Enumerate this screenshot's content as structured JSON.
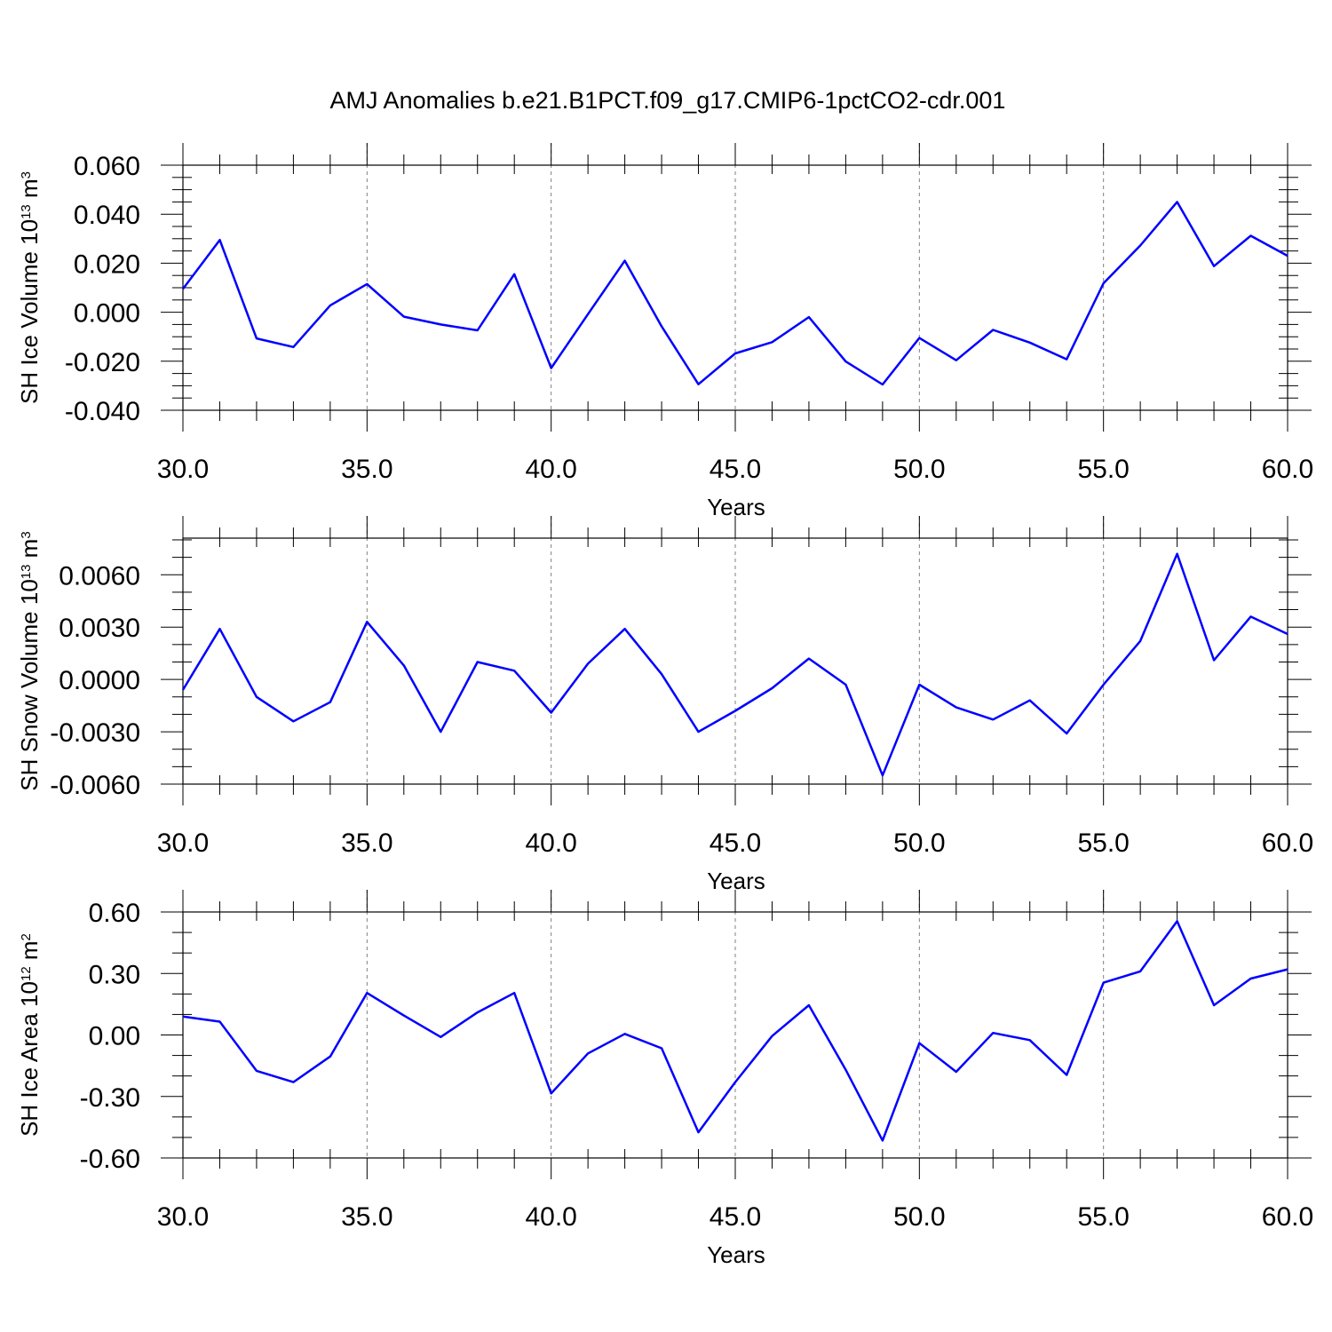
{
  "title": "AMJ Anomalies b.e21.B1PCT.f09_g17.CMIP6-1pctCO2-cdr.001",
  "colors": {
    "series": "#0000ff",
    "axes": "#000000",
    "grid": "#7f7f7f"
  },
  "chart_data": [
    {
      "type": "line",
      "xlabel": "Years",
      "ylabel": {
        "text": "SH Ice Volume 10",
        "exp": "13",
        "unit": " m",
        "unit_exp": "3"
      },
      "xlim": [
        30,
        60
      ],
      "ylim": [
        -0.04,
        0.06
      ],
      "xticks": [
        30,
        35,
        40,
        45,
        50,
        55,
        60
      ],
      "xtick_labels": [
        "30.0",
        "35.0",
        "40.0",
        "45.0",
        "50.0",
        "55.0",
        "60.0"
      ],
      "yticks": [
        -0.04,
        -0.02,
        0,
        0.02,
        0.04,
        0.06
      ],
      "ytick_labels": [
        "-0.040",
        "-0.020",
        "0.000",
        "0.020",
        "0.040",
        "0.060"
      ],
      "ymajor_step": 0.02,
      "yminor_step": 0.005,
      "grid": "vertical dashed at major x ticks",
      "series": [
        {
          "x": [
            30,
            31,
            32,
            33,
            34,
            35,
            36,
            37,
            38,
            39,
            40,
            41,
            42,
            43,
            44,
            45,
            46,
            47,
            48,
            49,
            50,
            51,
            52,
            53,
            54,
            55,
            56,
            57,
            58,
            59,
            60
          ],
          "values": [
            0.0095,
            0.0295,
            -0.0107,
            -0.0142,
            0.0028,
            0.0115,
            -0.0018,
            -0.005,
            -0.0074,
            0.0155,
            -0.0228,
            -0.0008,
            0.021,
            -0.0058,
            -0.0294,
            -0.0168,
            -0.0122,
            -0.002,
            -0.0201,
            -0.0295,
            -0.0105,
            -0.0196,
            -0.0072,
            -0.0124,
            -0.0192,
            0.0118,
            0.0272,
            0.045,
            0.0188,
            0.0312,
            0.023
          ]
        }
      ]
    },
    {
      "type": "line",
      "xlabel": "Years",
      "ylabel": {
        "text": "SH Snow Volume 10",
        "exp": "13",
        "unit": " m",
        "unit_exp": "3"
      },
      "xlim": [
        30,
        60
      ],
      "ylim": [
        -0.006,
        0.0081
      ],
      "xticks": [
        30,
        35,
        40,
        45,
        50,
        55,
        60
      ],
      "xtick_labels": [
        "30.0",
        "35.0",
        "40.0",
        "45.0",
        "50.0",
        "55.0",
        "60.0"
      ],
      "yticks": [
        -0.006,
        -0.003,
        0,
        0.003,
        0.006
      ],
      "ytick_labels": [
        "-0.0060",
        "-0.0030",
        "0.0000",
        "0.0030",
        "0.0060"
      ],
      "ymajor_step": 0.003,
      "yminor_step": 0.001,
      "grid": "vertical dashed at major x ticks",
      "series": [
        {
          "x": [
            30,
            31,
            32,
            33,
            34,
            35,
            36,
            37,
            38,
            39,
            40,
            41,
            42,
            43,
            44,
            45,
            46,
            47,
            48,
            49,
            50,
            51,
            52,
            53,
            54,
            55,
            56,
            57,
            58,
            59,
            60
          ],
          "values": [
            -0.0006,
            0.0029,
            -0.001,
            -0.0024,
            -0.0013,
            0.0033,
            0.0008,
            -0.003,
            0.001,
            0.0005,
            -0.0019,
            0.0009,
            0.0029,
            0.0003,
            -0.003,
            -0.0018,
            -0.0005,
            0.0012,
            -0.0003,
            -0.0055,
            -0.0003,
            -0.0016,
            -0.0023,
            -0.0012,
            -0.0031,
            -0.0003,
            0.0022,
            0.0072,
            0.0011,
            0.0036,
            0.0026
          ]
        }
      ]
    },
    {
      "type": "line",
      "xlabel": "Years",
      "ylabel": {
        "text": "SH Ice Area 10",
        "exp": "12",
        "unit": " m",
        "unit_exp": "2"
      },
      "xlim": [
        30,
        60
      ],
      "ylim": [
        -0.6,
        0.6
      ],
      "xticks": [
        30,
        35,
        40,
        45,
        50,
        55,
        60
      ],
      "xtick_labels": [
        "30.0",
        "35.0",
        "40.0",
        "45.0",
        "50.0",
        "55.0",
        "60.0"
      ],
      "yticks": [
        -0.6,
        -0.3,
        0,
        0.3,
        0.6
      ],
      "ytick_labels": [
        "-0.60",
        "-0.30",
        "0.00",
        "0.30",
        "0.60"
      ],
      "ymajor_step": 0.3,
      "yminor_step": 0.1,
      "grid": "vertical dashed at major x ticks",
      "series": [
        {
          "x": [
            30,
            31,
            32,
            33,
            34,
            35,
            36,
            37,
            38,
            39,
            40,
            41,
            42,
            43,
            44,
            45,
            46,
            47,
            48,
            49,
            50,
            51,
            52,
            53,
            54,
            55,
            56,
            57,
            58,
            59,
            60
          ],
          "values": [
            0.09,
            0.065,
            -0.175,
            -0.23,
            -0.105,
            0.205,
            0.095,
            -0.01,
            0.11,
            0.205,
            -0.285,
            -0.09,
            0.005,
            -0.065,
            -0.475,
            -0.23,
            -0.005,
            0.145,
            -0.17,
            -0.515,
            -0.04,
            -0.18,
            0.01,
            -0.025,
            -0.195,
            0.255,
            0.31,
            0.555,
            0.145,
            0.275,
            0.32
          ]
        }
      ]
    }
  ]
}
